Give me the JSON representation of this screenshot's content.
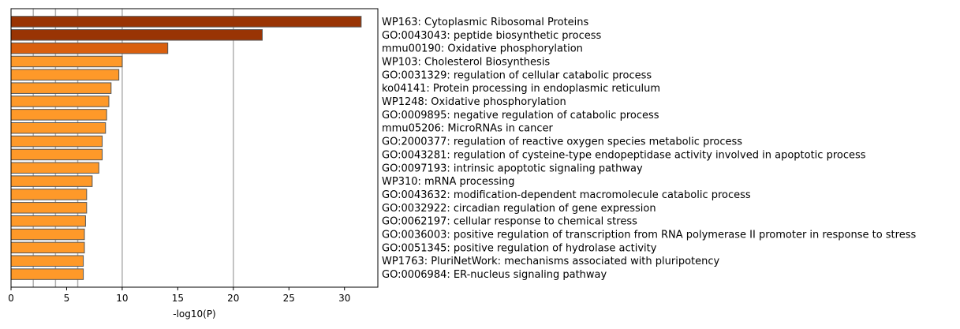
{
  "chart_data": {
    "type": "bar",
    "orientation": "horizontal",
    "xlabel": "-log10(P)",
    "ylabel": "",
    "title": "",
    "xlim": [
      0,
      33
    ],
    "xticks": [
      0,
      5,
      10,
      15,
      20,
      25,
      30
    ],
    "vertical_gridlines": [
      2,
      4,
      6,
      10,
      20
    ],
    "grid_color": "#b0b0b0",
    "bar_edge_color": "#555555",
    "categories": [
      "WP163: Cytoplasmic Ribosomal Proteins",
      "GO:0043043: peptide biosynthetic process",
      "mmu00190: Oxidative phosphorylation",
      "WP103: Cholesterol Biosynthesis",
      "GO:0031329: regulation of cellular catabolic process",
      "ko04141: Protein processing in endoplasmic reticulum",
      "WP1248: Oxidative phosphorylation",
      "GO:0009895: negative regulation of catabolic process",
      "mmu05206: MicroRNAs in cancer",
      "GO:2000377: regulation of reactive oxygen species metabolic process",
      "GO:0043281: regulation of cysteine-type endopeptidase activity involved in apoptotic process",
      "GO:0097193: intrinsic apoptotic signaling pathway",
      "WP310: mRNA processing",
      "GO:0043632: modification-dependent macromolecule catabolic process",
      "GO:0032922: circadian regulation of gene expression",
      "GO:0062197: cellular response to chemical stress",
      "GO:0036003: positive regulation of transcription from RNA polymerase II promoter in response to stress",
      "GO:0051345: positive regulation of hydrolase activity",
      "WP1763: PluriNetWork: mechanisms associated with pluripotency",
      "GO:0006984: ER-nucleus signaling pathway"
    ],
    "values": [
      31.5,
      22.6,
      14.1,
      10.0,
      9.7,
      9.0,
      8.8,
      8.6,
      8.5,
      8.2,
      8.2,
      7.9,
      7.3,
      6.8,
      6.8,
      6.7,
      6.6,
      6.6,
      6.5,
      6.5
    ],
    "colors": [
      "#993404",
      "#993404",
      "#d95f0e",
      "#fe9929",
      "#fe9929",
      "#fe9929",
      "#fe9929",
      "#fe9929",
      "#fe9929",
      "#fe9929",
      "#fe9929",
      "#fe9929",
      "#fe9929",
      "#fe9929",
      "#fe9929",
      "#fe9929",
      "#fe9929",
      "#fe9929",
      "#fe9929",
      "#fe9929"
    ]
  }
}
